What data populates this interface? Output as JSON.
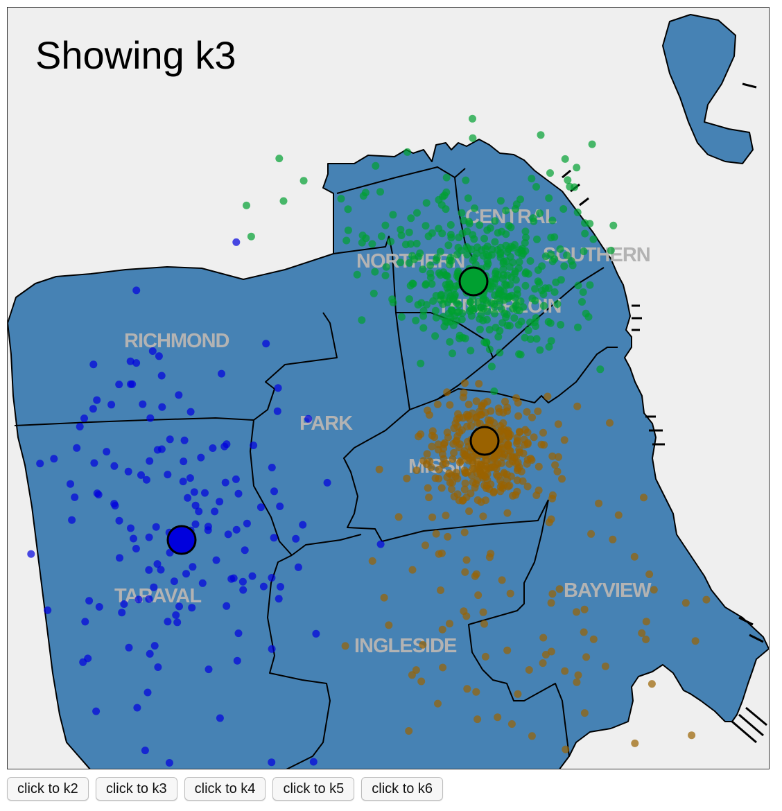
{
  "title": "Showing k3",
  "colors": {
    "water": "#efefef",
    "land": "#4682b4",
    "border": "#000000",
    "label": "#b3b3b3",
    "cluster_blue": "#0000dd",
    "cluster_green": "#00a030",
    "cluster_brown": "#9a6200"
  },
  "districts": [
    {
      "id": "richmond",
      "label": "RICHMOND"
    },
    {
      "id": "northern",
      "label": "NORTHERN"
    },
    {
      "id": "central",
      "label": "CENTRAL"
    },
    {
      "id": "southern",
      "label": "SOUTHERN"
    },
    {
      "id": "tenderloin",
      "label": "TENDERLOIN"
    },
    {
      "id": "park",
      "label": "PARK"
    },
    {
      "id": "mission",
      "label": "MISSION"
    },
    {
      "id": "taraval",
      "label": "TARAVAL"
    },
    {
      "id": "ingleside",
      "label": "INGLESIDE"
    },
    {
      "id": "bayview",
      "label": "BAYVIEW"
    }
  ],
  "clusters": [
    {
      "name": "cluster-blue",
      "color_key": "cluster_blue"
    },
    {
      "name": "cluster-green",
      "color_key": "cluster_green"
    },
    {
      "name": "cluster-brown",
      "color_key": "cluster_brown"
    }
  ],
  "buttons": [
    {
      "id": "k2",
      "label": "click to k2"
    },
    {
      "id": "k3",
      "label": "click to k3"
    },
    {
      "id": "k4",
      "label": "click to k4"
    },
    {
      "id": "k5",
      "label": "click to k5"
    },
    {
      "id": "k6",
      "label": "click to k6"
    }
  ]
}
